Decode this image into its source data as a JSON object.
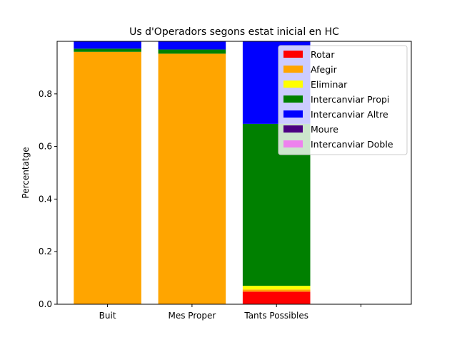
{
  "chart_data": {
    "type": "bar",
    "stacked": true,
    "title": "Us d'Operadors segons estat inicial en HC",
    "xlabel": "",
    "ylabel": "Percentatge",
    "categories": [
      "Buit",
      "Mes Proper",
      "Tants Possibles",
      ""
    ],
    "ylim": [
      0,
      1.0
    ],
    "yticks": [
      0.0,
      0.2,
      0.4,
      0.6,
      0.8
    ],
    "ytick_labels": [
      "0.0",
      "0.2",
      "0.4",
      "0.6",
      "0.8"
    ],
    "legend_position": "top-right",
    "series": [
      {
        "name": "Rotar",
        "color": "#ff0000",
        "values": [
          0.0,
          0.0,
          0.048,
          0.0
        ]
      },
      {
        "name": "Afegir",
        "color": "#ffa500",
        "values": [
          0.96,
          0.953,
          0.008,
          0.0
        ]
      },
      {
        "name": "Eliminar",
        "color": "#ffff00",
        "values": [
          0.0,
          0.0,
          0.014,
          0.0
        ]
      },
      {
        "name": "Intercanviar Propi",
        "color": "#008000",
        "values": [
          0.012,
          0.016,
          0.616,
          0.0
        ]
      },
      {
        "name": "Intercanviar Altre",
        "color": "#0000ff",
        "values": [
          0.028,
          0.031,
          0.314,
          0.0
        ]
      },
      {
        "name": "Moure",
        "color": "#4b0082",
        "values": [
          0.0,
          0.0,
          0.0,
          0.0
        ]
      },
      {
        "name": "Intercanviar Doble",
        "color": "#ee82ee",
        "values": [
          0.0,
          0.0,
          0.0,
          0.0
        ]
      }
    ]
  }
}
